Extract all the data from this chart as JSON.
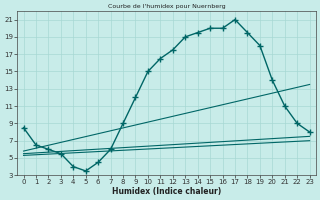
{
  "title": "Courbe de l'humidex pour Nuernberg",
  "xlabel": "Humidex (Indice chaleur)",
  "bg_color": "#c8ece9",
  "grid_color": "#a8d8d4",
  "line_color": "#006666",
  "xlim": [
    -0.5,
    23.5
  ],
  "ylim": [
    3,
    22
  ],
  "yticks": [
    3,
    5,
    7,
    9,
    11,
    13,
    15,
    17,
    19,
    21
  ],
  "xticks": [
    0,
    1,
    2,
    3,
    4,
    5,
    6,
    7,
    8,
    9,
    10,
    11,
    12,
    13,
    14,
    15,
    16,
    17,
    18,
    19,
    20,
    21,
    22,
    23
  ],
  "main_x": [
    0,
    1,
    2,
    3,
    4,
    5,
    6,
    7,
    8,
    9,
    10,
    11,
    12,
    13,
    14,
    15,
    16,
    17,
    18,
    19,
    20,
    21,
    22,
    23
  ],
  "main_y": [
    8.5,
    6.5,
    6.0,
    5.5,
    4.0,
    3.5,
    4.5,
    6.0,
    9.0,
    12.0,
    15.0,
    16.5,
    17.5,
    19.0,
    19.5,
    20.0,
    20.0,
    21.0,
    19.5,
    18.0,
    14.0,
    11.0,
    9.0,
    8.0
  ],
  "line1_x": [
    0,
    23
  ],
  "line1_y": [
    5.8,
    13.5
  ],
  "line2_x": [
    0,
    23
  ],
  "line2_y": [
    5.5,
    7.5
  ],
  "line3_x": [
    0,
    23
  ],
  "line3_y": [
    5.3,
    7.0
  ]
}
